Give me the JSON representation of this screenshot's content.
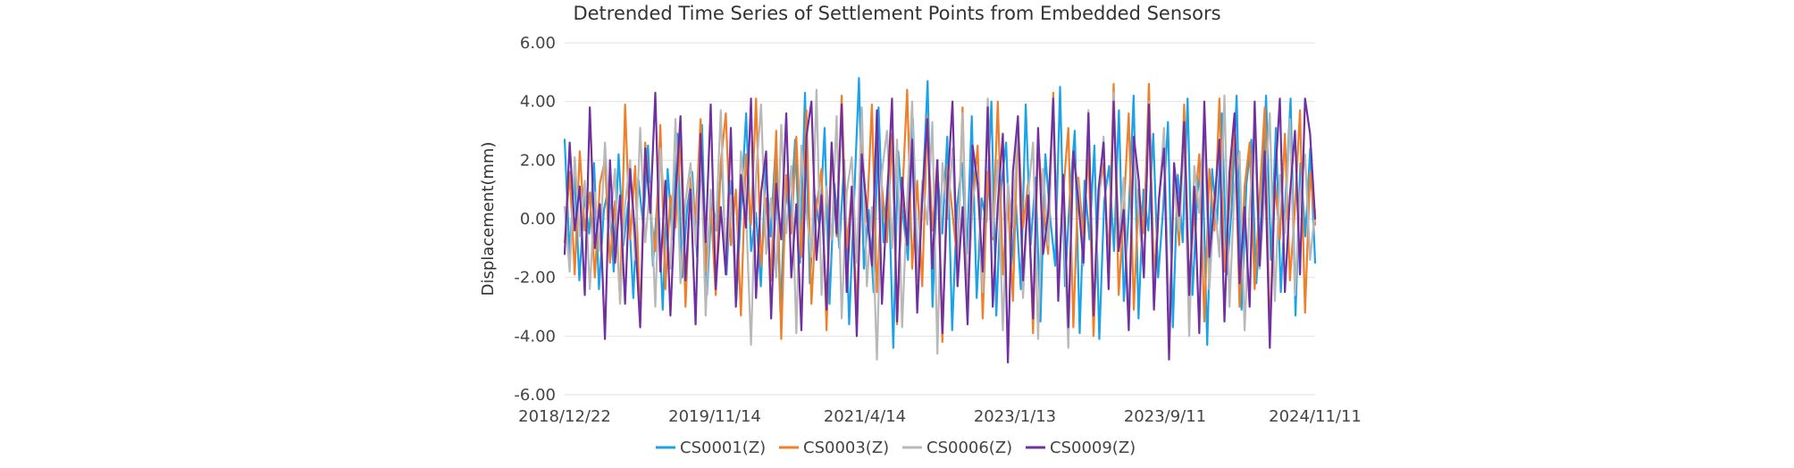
{
  "chart_data": {
    "type": "line",
    "title": "Detrended Time Series of Settlement Points from Embedded Sensors",
    "xlabel": "",
    "ylabel": "Displacement(mm)",
    "ylim": [
      -6,
      6
    ],
    "y_ticks": [
      "6.00",
      "4.00",
      "2.00",
      "0.00",
      "-2.00",
      "-4.00",
      "-6.00"
    ],
    "x_tick_labels": [
      "2018/12/22",
      "2019/11/14",
      "2021/4/14",
      "2023/1/13",
      "2023/9/11",
      "2024/11/11"
    ],
    "grid": "horizontal",
    "legend": "bottom",
    "series": [
      {
        "name": "CS0001(Z)",
        "color": "#1aa3e8",
        "values": [
          2.7,
          -1.2,
          1.5,
          -2.1,
          0.8,
          -0.5,
          1.9,
          -2.4,
          0.3,
          1.1,
          -1.8,
          2.2,
          -0.9,
          0.6,
          -2.7,
          1.4,
          -0.2,
          2.5,
          -1.6,
          0.9,
          -3.1,
          1.7,
          -0.7,
          2.9,
          -2.0,
          0.4,
          1.6,
          -1.3,
          3.2,
          -2.6,
          0.7,
          -0.4,
          2.1,
          -1.9,
          1.3,
          -2.8,
          0.5,
          3.6,
          -1.1,
          0.2,
          -2.3,
          1.8,
          -0.6,
          2.4,
          -3.2,
          1.0,
          0.0,
          2.7,
          -1.5,
          4.3,
          -2.2,
          0.8,
          -0.3,
          3.1,
          -2.9,
          1.2,
          -1.0,
          2.0,
          -3.6,
          0.6,
          4.8,
          -1.7,
          0.3,
          -2.5,
          3.8,
          -0.8,
          1.5,
          -4.4,
          2.3,
          0.1,
          -1.4,
          3.4,
          -2.1,
          0.9,
          4.7,
          -3.0,
          1.6,
          -0.5,
          2.8,
          -3.8,
          0.4,
          1.9,
          -1.2,
          3.5,
          -2.7,
          0.7,
          -0.1,
          4.0,
          -3.3,
          1.1,
          2.6,
          -1.8,
          0.5,
          -2.4,
          3.9,
          -0.9,
          1.4,
          -3.5,
          2.2,
          0.0,
          -1.6,
          4.5,
          -2.3,
          0.8,
          3.0,
          -3.9,
          1.3,
          -0.7,
          2.5,
          -4.1,
          0.6,
          1.8,
          -1.1,
          3.7,
          -2.8,
          0.2,
          4.2,
          -3.4,
          1.0,
          -0.4,
          2.9,
          -2.0,
          0.3,
          3.3,
          -3.7,
          1.5,
          -0.8,
          4.1,
          -2.6,
          0.9,
          2.1,
          -4.3,
          1.7,
          -0.2,
          3.6,
          -1.9,
          0.4,
          4.2,
          -3.1,
          1.2,
          2.7,
          -2.2,
          0.1,
          4.2,
          -1.4,
          3.1,
          -2.5,
          0.8,
          4.1,
          -3.3,
          1.9,
          -0.6,
          2.4,
          -1.5
        ]
      },
      {
        "name": "CS0003(Z)",
        "color": "#f07f2a",
        "values": [
          -0.8,
          1.6,
          -1.9,
          2.3,
          -0.4,
          0.9,
          -2.0,
          1.2,
          2.0,
          -1.5,
          0.6,
          -2.8,
          3.9,
          -0.7,
          1.8,
          -3.5,
          2.6,
          0.3,
          -1.1,
          3.2,
          -2.4,
          0.8,
          -0.3,
          2.7,
          -3.0,
          1.4,
          0.0,
          3.4,
          -1.8,
          0.5,
          -2.6,
          1.9,
          3.6,
          -0.9,
          1.0,
          -3.3,
          2.2,
          -0.2,
          4.1,
          -1.6,
          0.7,
          -2.1,
          3.0,
          -4.1,
          1.5,
          -0.5,
          2.8,
          -1.3,
          3.7,
          -2.9,
          0.4,
          1.7,
          -3.8,
          2.4,
          -0.6,
          4.2,
          -1.0,
          0.9,
          -3.2,
          2.6,
          -0.1,
          3.9,
          -2.5,
          1.1,
          -0.8,
          2.9,
          -3.6,
          0.6,
          4.4,
          -1.7,
          1.3,
          -2.3,
          3.5,
          -0.4,
          2.0,
          -4.2,
          1.8,
          0.2,
          -1.5,
          3.8,
          -2.7,
          0.5,
          2.5,
          -3.4,
          1.6,
          -0.7,
          4.0,
          -1.9,
          0.8,
          -2.8,
          3.3,
          -0.3,
          1.2,
          -3.9,
          2.7,
          0.4,
          -1.2,
          4.3,
          -2.2,
          0.9,
          3.1,
          -3.7,
          1.4,
          -0.6,
          2.3,
          -4.0,
          0.7,
          1.9,
          -1.4,
          4.6,
          -2.6,
          0.3,
          3.6,
          -3.1,
          1.0,
          -0.5,
          4.6,
          -2.0,
          0.6,
          2.8,
          -4.5,
          1.5,
          -0.9,
          3.9,
          -2.3,
          0.2,
          2.2,
          -3.5,
          1.7,
          -0.4,
          4.1,
          -1.8,
          0.5,
          3.4,
          -3.0,
          1.1,
          2.6,
          -2.4,
          0.8,
          3.8,
          -4.0,
          1.3,
          -0.7,
          2.9,
          -2.1,
          0.4,
          3.7,
          -3.2,
          1.6,
          -0.2
        ]
      },
      {
        "name": "CS0006(Z)",
        "color": "#b8b8b8",
        "values": [
          0.4,
          -1.8,
          2.1,
          -0.6,
          1.3,
          -2.4,
          0.9,
          -1.1,
          2.6,
          -0.3,
          1.7,
          -2.9,
          0.5,
          2.0,
          -1.4,
          3.1,
          -0.8,
          1.2,
          -3.0,
          2.4,
          0.1,
          -1.7,
          3.4,
          -2.2,
          0.6,
          1.9,
          -0.9,
          2.8,
          -3.3,
          1.0,
          -0.4,
          3.7,
          -1.6,
          0.8,
          -2.7,
          2.3,
          0.3,
          -4.3,
          1.5,
          3.9,
          -1.2,
          0.7,
          -2.0,
          3.2,
          -0.5,
          1.8,
          -3.9,
          2.5,
          0.2,
          -1.3,
          4.4,
          -2.6,
          1.1,
          -0.7,
          3.5,
          -3.4,
          0.9,
          2.1,
          -1.5,
          3.8,
          -2.3,
          0.4,
          -4.8,
          1.6,
          3.0,
          -1.0,
          2.7,
          -3.7,
          0.6,
          4.0,
          -2.1,
          1.3,
          -0.2,
          3.3,
          -4.6,
          1.9,
          0.0,
          2.4,
          -1.8,
          3.6,
          -3.1,
          0.7,
          1.5,
          -2.5,
          4.1,
          -0.6,
          2.0,
          -3.8,
          1.2,
          -0.3,
          3.4,
          -2.7,
          0.8,
          2.6,
          -4.1,
          1.7,
          -0.9,
          3.9,
          -2.0,
          0.5,
          -4.4,
          2.2,
          1.0,
          -1.6,
          3.7,
          -3.3,
          0.3,
          2.8,
          -2.2,
          4.3,
          -0.8,
          1.4,
          -3.6,
          2.5,
          0.1,
          -1.9,
          4.0,
          -2.9,
          0.6,
          3.1,
          -3.5,
          1.3,
          -0.4,
          2.7,
          -4.0,
          1.8,
          0.2,
          3.5,
          -2.4,
          0.7,
          -1.3,
          4.2,
          -3.0,
          1.1,
          2.3,
          -3.8,
          0.4,
          3.0,
          -1.7,
          0.9,
          3.6,
          -2.8,
          1.5,
          -0.5,
          3.4,
          -2.6,
          0.8,
          2.2,
          -1.4,
          0.3
        ]
      },
      {
        "name": "CS0009(Z)",
        "color": "#7030a0",
        "values": [
          -1.2,
          2.6,
          -0.4,
          1.1,
          -2.6,
          3.8,
          -1.0,
          0.5,
          -4.1,
          2.0,
          -1.5,
          0.8,
          -2.9,
          1.7,
          -0.6,
          -3.7,
          2.4,
          0.2,
          4.3,
          -1.8,
          1.3,
          -3.3,
          0.7,
          3.5,
          -2.1,
          1.0,
          -3.6,
          2.9,
          -0.8,
          3.9,
          -2.4,
          0.4,
          -1.9,
          3.1,
          -3.0,
          1.5,
          -0.3,
          4.1,
          -2.7,
          0.9,
          2.3,
          -3.4,
          1.2,
          -0.7,
          3.6,
          -2.0,
          0.5,
          -3.8,
          2.8,
          4.0,
          -1.4,
          0.8,
          -3.1,
          2.6,
          -0.5,
          3.9,
          -2.5,
          1.1,
          -4.0,
          2.2,
          0.3,
          -1.6,
          3.7,
          -2.9,
          0.6,
          4.1,
          -3.5,
          1.4,
          -0.9,
          2.7,
          -3.2,
          0.7,
          3.4,
          -1.7,
          2.0,
          -3.9,
          1.0,
          4.0,
          -2.3,
          0.4,
          -3.6,
          2.5,
          1.2,
          -1.8,
          3.8,
          -3.0,
          0.5,
          2.9,
          -4.9,
          1.6,
          3.5,
          -2.1,
          0.8,
          -3.4,
          3.1,
          -1.2,
          0.2,
          4.1,
          -2.8,
          1.5,
          -3.7,
          2.3,
          0.6,
          -1.5,
          3.6,
          -3.3,
          1.0,
          2.6,
          -2.4,
          4.0,
          -1.1,
          0.3,
          -3.8,
          2.8,
          1.3,
          -2.0,
          3.9,
          -3.1,
          0.7,
          2.4,
          -4.8,
          1.9,
          0.1,
          3.3,
          -2.6,
          1.1,
          -3.9,
          4.0,
          -1.3,
          0.5,
          2.7,
          -3.5,
          1.6,
          3.6,
          -2.2,
          0.4,
          -3.0,
          4.0,
          -1.6,
          2.3,
          -4.4,
          1.2,
          4.1,
          -2.5,
          0.8,
          3.0,
          -1.9,
          4.1,
          2.9,
          0.0
        ]
      }
    ]
  }
}
